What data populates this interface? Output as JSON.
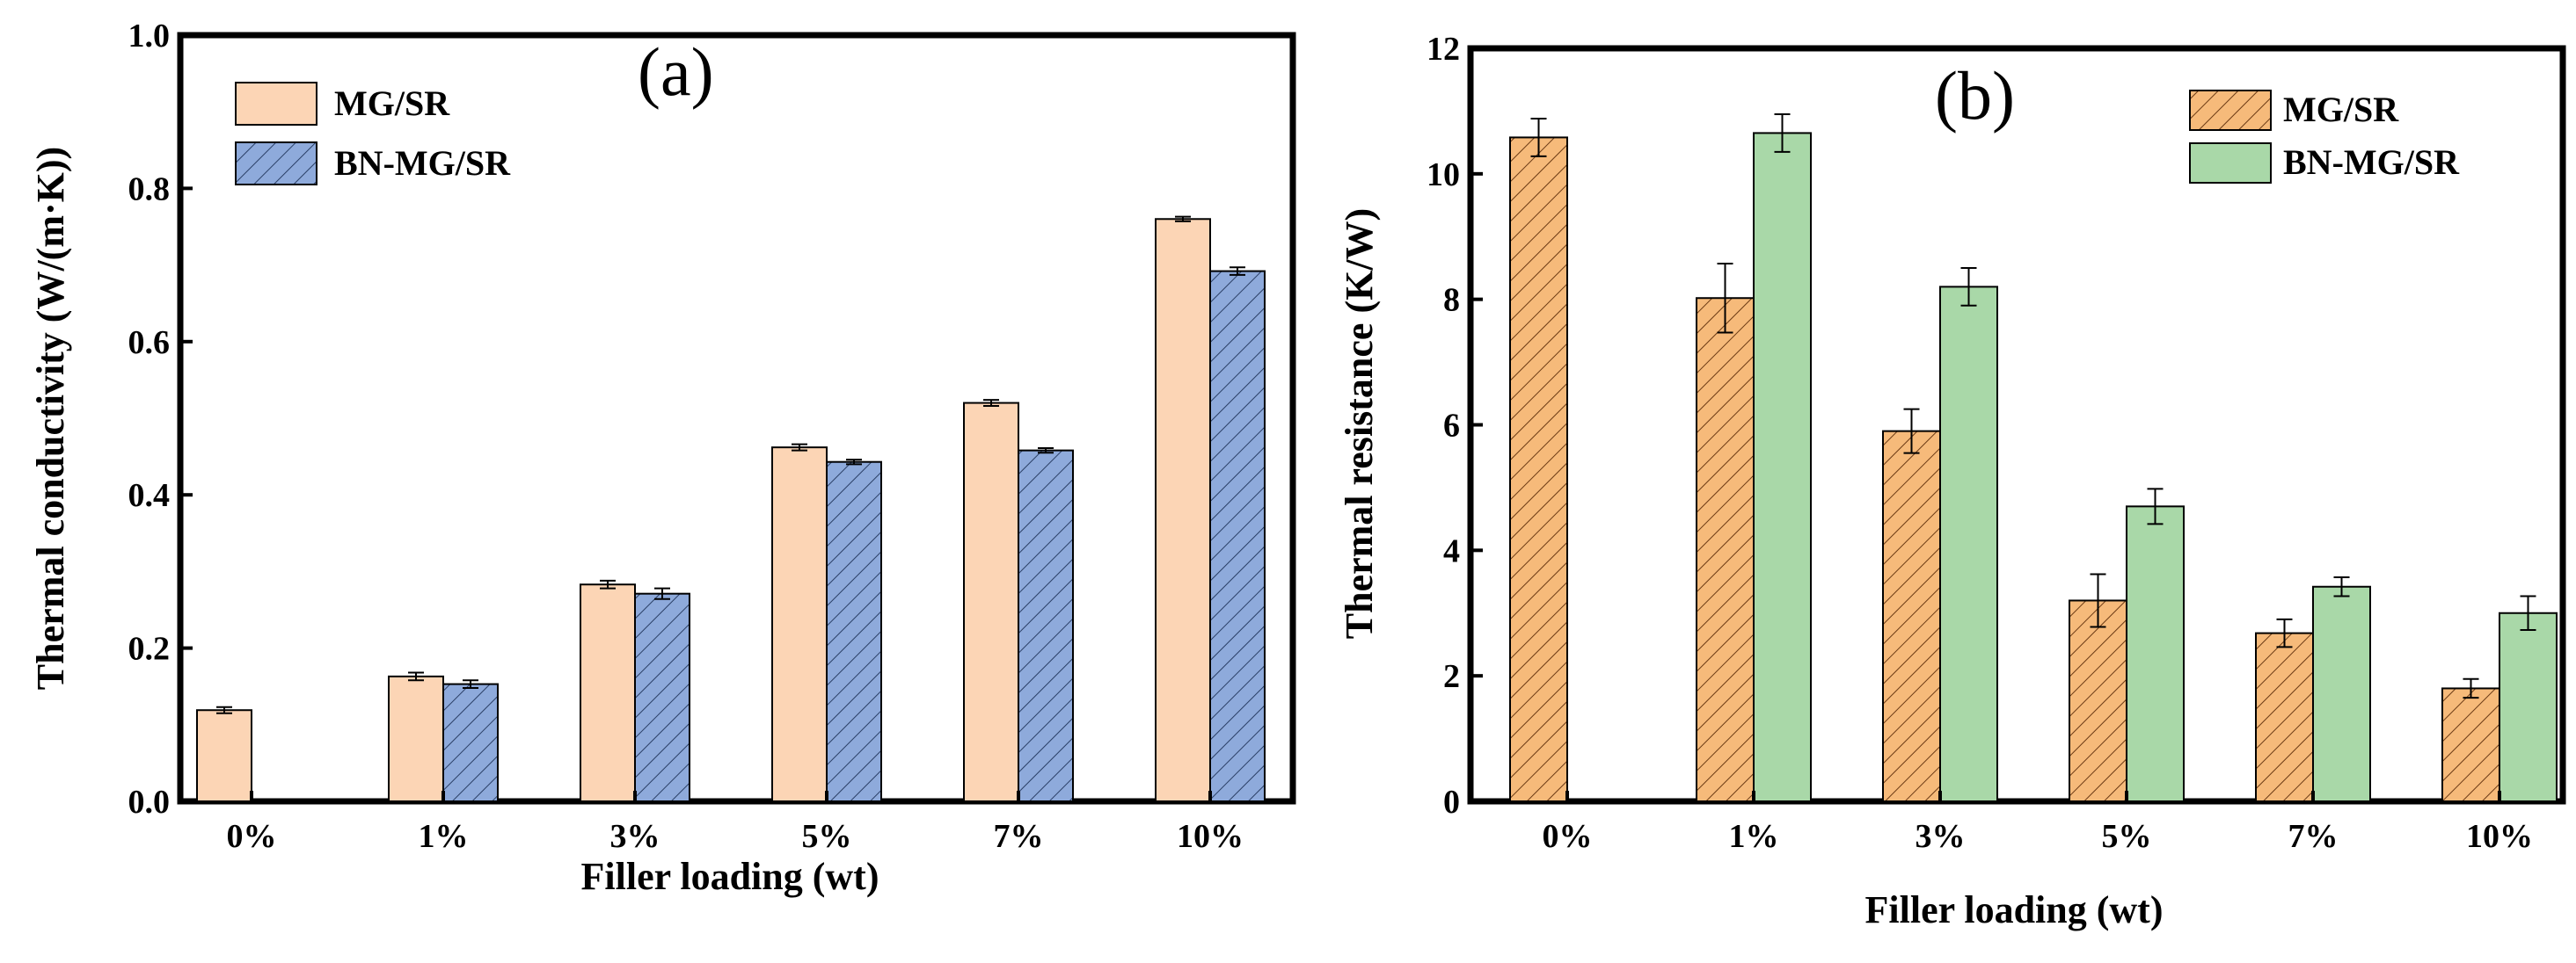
{
  "chart_data": [
    {
      "type": "bar",
      "panel_label": "(a)",
      "categories": [
        "0%",
        "1%",
        "3%",
        "5%",
        "7%",
        "10%"
      ],
      "xlabel": "Filler loading (wt)",
      "ylabel": "Thermal conductivity (W/(m·K))",
      "ylim": [
        0,
        1.0
      ],
      "yticks": [
        "0.0",
        "0.2",
        "0.4",
        "0.6",
        "0.8",
        "1.0"
      ],
      "legend_position": "top-left",
      "series": [
        {
          "name": "MG/SR",
          "values": [
            0.119,
            0.163,
            0.283,
            0.462,
            0.52,
            0.76
          ],
          "errors": [
            0.004,
            0.005,
            0.005,
            0.004,
            0.004,
            0.003
          ],
          "color": "#fcd5b5",
          "hatch": false
        },
        {
          "name": "BN-MG/SR",
          "values": [
            null,
            0.153,
            0.271,
            0.443,
            0.458,
            0.692
          ],
          "errors": [
            null,
            0.005,
            0.007,
            0.003,
            0.003,
            0.005
          ],
          "color": "#8eaadb",
          "hatch": true
        }
      ]
    },
    {
      "type": "bar",
      "panel_label": "(b)",
      "categories": [
        "0%",
        "1%",
        "3%",
        "5%",
        "7%",
        "10%"
      ],
      "xlabel": "Filler loading (wt)",
      "ylabel": "Thermal resistance (K/W)",
      "ylim": [
        0,
        12
      ],
      "yticks": [
        "0",
        "2",
        "4",
        "6",
        "8",
        "10",
        "12"
      ],
      "legend_position": "top-right",
      "series": [
        {
          "name": "MG/SR",
          "values": [
            10.58,
            8.02,
            5.9,
            3.2,
            2.68,
            1.8
          ],
          "errors": [
            0.3,
            0.55,
            0.35,
            0.42,
            0.22,
            0.15
          ],
          "color": "#f6ba7a",
          "hatch": true
        },
        {
          "name": "BN-MG/SR",
          "values": [
            null,
            10.65,
            8.2,
            4.7,
            3.42,
            3.0
          ],
          "errors": [
            null,
            0.3,
            0.3,
            0.28,
            0.15,
            0.27
          ],
          "color": "#a9d8a8",
          "hatch": false
        }
      ]
    }
  ]
}
